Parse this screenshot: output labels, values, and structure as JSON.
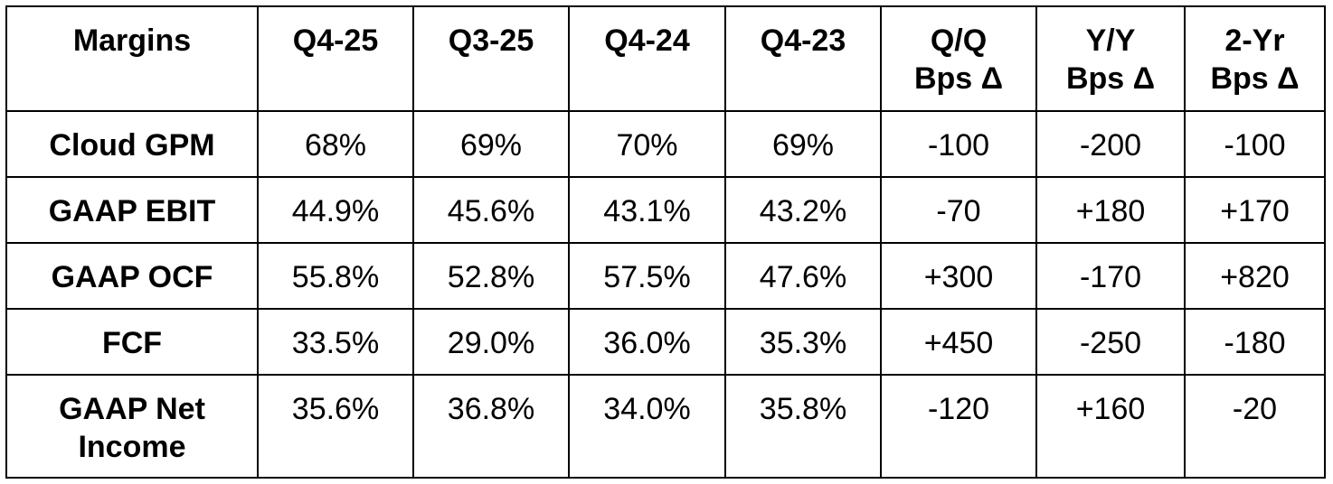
{
  "table": {
    "header": [
      "Margins",
      "Q4-25",
      "Q3-25",
      "Q4-24",
      "Q4-23",
      "Q/Q Bps Δ",
      "Y/Y Bps Δ",
      "2-Yr Bps Δ"
    ],
    "rows": [
      [
        "Cloud GPM",
        "68%",
        "69%",
        "70%",
        "69%",
        "-100",
        "-200",
        "-100"
      ],
      [
        "GAAP EBIT",
        "44.9%",
        "45.6%",
        "43.1%",
        "43.2%",
        "-70",
        "+180",
        "+170"
      ],
      [
        "GAAP OCF",
        "55.8%",
        "52.8%",
        "57.5%",
        "47.6%",
        "+300",
        "-170",
        "+820"
      ],
      [
        "FCF",
        "33.5%",
        "29.0%",
        "36.0%",
        "35.3%",
        "+450",
        "-250",
        "-180"
      ],
      [
        "GAAP Net Income",
        "35.6%",
        "36.8%",
        "34.0%",
        "35.8%",
        "-120",
        "+160",
        "-20"
      ]
    ]
  }
}
